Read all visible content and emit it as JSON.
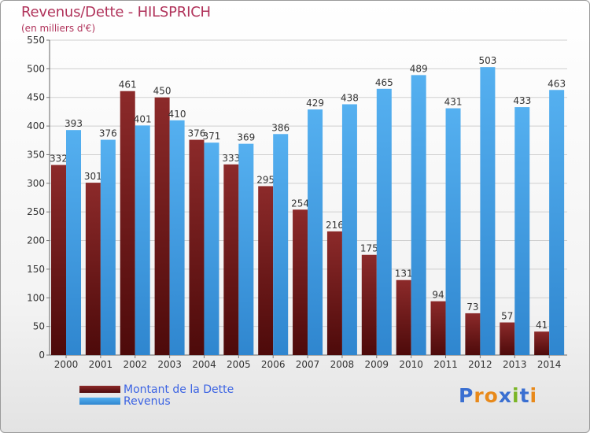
{
  "chart_data": {
    "type": "bar",
    "title": "Revenus/Dette - HILSPRICH",
    "subtitle": "(en milliers d'€)",
    "categories": [
      "2000",
      "2001",
      "2002",
      "2003",
      "2004",
      "2005",
      "2006",
      "2007",
      "2008",
      "2009",
      "2010",
      "2011",
      "2012",
      "2013",
      "2014"
    ],
    "series": [
      {
        "name": "Montant de la Dette",
        "color": "#7a1e1e",
        "values": [
          332,
          301,
          461,
          450,
          376,
          333,
          295,
          254,
          216,
          175,
          131,
          94,
          73,
          57,
          41
        ]
      },
      {
        "name": "Revenus",
        "color": "#4aa6e8",
        "values": [
          393,
          376,
          401,
          410,
          371,
          369,
          386,
          429,
          438,
          465,
          489,
          431,
          503,
          433,
          463
        ]
      }
    ],
    "ylim": [
      0,
      550
    ],
    "yticks": [
      0,
      50,
      100,
      150,
      200,
      250,
      300,
      350,
      400,
      450,
      500,
      550
    ],
    "grid": true,
    "legend_position": "bottom-left"
  },
  "brand": {
    "letters": [
      "P",
      "r",
      "o",
      "x",
      "i",
      "t",
      "i"
    ],
    "colors": [
      "#3a6fd1",
      "#e8891a",
      "#e8891a",
      "#3a6fd1",
      "#7ab526",
      "#3a6fd1",
      "#e8891a"
    ]
  }
}
